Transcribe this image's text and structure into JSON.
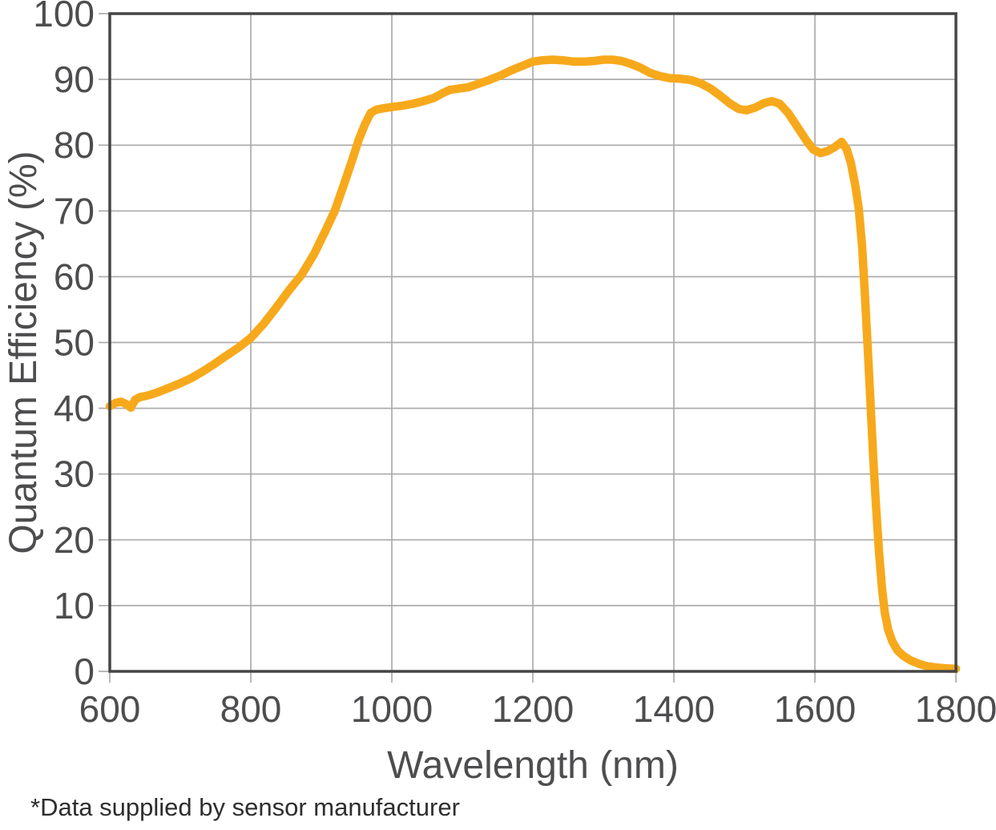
{
  "footnote": "*Data supplied by sensor manufacturer",
  "colors": {
    "curve": "#F7A91C",
    "frame": "#454547",
    "grid": "#ACACAC",
    "tick_text": "#4D4D4F",
    "axis_title_text": "#4D4D4F",
    "footnote_text": "#2E2E2E"
  },
  "chart_data": {
    "type": "line",
    "title": "",
    "xlabel": "Wavelength (nm)",
    "ylabel": "Quantum Efficiency (%)",
    "xlim": [
      600,
      1800
    ],
    "ylim": [
      0,
      100
    ],
    "xticks": [
      600,
      800,
      1000,
      1200,
      1400,
      1600,
      1800
    ],
    "yticks": [
      0,
      10,
      20,
      30,
      40,
      50,
      60,
      70,
      80,
      90,
      100
    ],
    "grid": true,
    "legend": false,
    "series": [
      {
        "name": "Quantum Efficiency",
        "color": "#F7A91C",
        "points": [
          [
            600,
            40.3
          ],
          [
            608,
            40.8
          ],
          [
            616,
            41.0
          ],
          [
            624,
            40.6
          ],
          [
            630,
            40.1
          ],
          [
            636,
            41.3
          ],
          [
            643,
            41.7
          ],
          [
            652,
            41.9
          ],
          [
            662,
            42.2
          ],
          [
            672,
            42.6
          ],
          [
            684,
            43.1
          ],
          [
            700,
            43.8
          ],
          [
            716,
            44.6
          ],
          [
            732,
            45.6
          ],
          [
            748,
            46.7
          ],
          [
            764,
            47.9
          ],
          [
            782,
            49.2
          ],
          [
            800,
            50.7
          ],
          [
            818,
            52.8
          ],
          [
            836,
            55.3
          ],
          [
            854,
            57.9
          ],
          [
            872,
            60.3
          ],
          [
            890,
            63.5
          ],
          [
            905,
            66.8
          ],
          [
            919,
            70.0
          ],
          [
            933,
            74.3
          ],
          [
            944,
            77.8
          ],
          [
            953,
            80.8
          ],
          [
            962,
            83.2
          ],
          [
            970,
            84.9
          ],
          [
            978,
            85.4
          ],
          [
            988,
            85.6
          ],
          [
            1000,
            85.8
          ],
          [
            1015,
            86.0
          ],
          [
            1030,
            86.3
          ],
          [
            1045,
            86.7
          ],
          [
            1060,
            87.2
          ],
          [
            1072,
            87.9
          ],
          [
            1082,
            88.4
          ],
          [
            1095,
            88.6
          ],
          [
            1108,
            88.8
          ],
          [
            1122,
            89.3
          ],
          [
            1138,
            89.9
          ],
          [
            1154,
            90.6
          ],
          [
            1170,
            91.4
          ],
          [
            1186,
            92.1
          ],
          [
            1200,
            92.7
          ],
          [
            1213,
            92.9
          ],
          [
            1228,
            93.0
          ],
          [
            1243,
            92.9
          ],
          [
            1258,
            92.7
          ],
          [
            1272,
            92.7
          ],
          [
            1287,
            92.8
          ],
          [
            1300,
            93.0
          ],
          [
            1313,
            93.0
          ],
          [
            1326,
            92.8
          ],
          [
            1338,
            92.4
          ],
          [
            1352,
            91.8
          ],
          [
            1366,
            91.0
          ],
          [
            1380,
            90.5
          ],
          [
            1394,
            90.2
          ],
          [
            1410,
            90.1
          ],
          [
            1424,
            89.9
          ],
          [
            1438,
            89.4
          ],
          [
            1452,
            88.6
          ],
          [
            1466,
            87.5
          ],
          [
            1480,
            86.3
          ],
          [
            1492,
            85.5
          ],
          [
            1503,
            85.3
          ],
          [
            1515,
            85.7
          ],
          [
            1528,
            86.4
          ],
          [
            1539,
            86.7
          ],
          [
            1550,
            86.3
          ],
          [
            1562,
            84.9
          ],
          [
            1575,
            82.8
          ],
          [
            1588,
            80.7
          ],
          [
            1598,
            79.3
          ],
          [
            1608,
            78.8
          ],
          [
            1618,
            79.1
          ],
          [
            1628,
            79.7
          ],
          [
            1638,
            80.5
          ],
          [
            1645,
            79.4
          ],
          [
            1651,
            77.3
          ],
          [
            1657,
            74.0
          ],
          [
            1662,
            70.5
          ],
          [
            1667,
            64.5
          ],
          [
            1671,
            57.0
          ],
          [
            1675,
            49.0
          ],
          [
            1679,
            40.5
          ],
          [
            1683,
            32.0
          ],
          [
            1687,
            24.5
          ],
          [
            1691,
            18.0
          ],
          [
            1695,
            12.8
          ],
          [
            1699,
            9.0
          ],
          [
            1704,
            6.3
          ],
          [
            1710,
            4.5
          ],
          [
            1717,
            3.2
          ],
          [
            1725,
            2.4
          ],
          [
            1735,
            1.7
          ],
          [
            1746,
            1.2
          ],
          [
            1758,
            0.8
          ],
          [
            1772,
            0.6
          ],
          [
            1786,
            0.45
          ],
          [
            1800,
            0.4
          ]
        ]
      }
    ]
  }
}
